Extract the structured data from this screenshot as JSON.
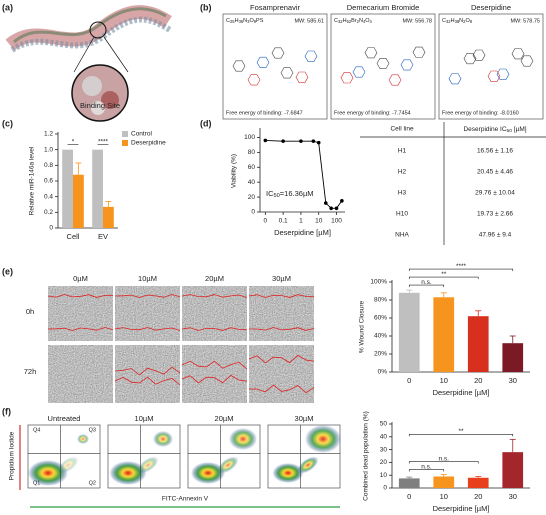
{
  "panel_labels": [
    "(a)",
    "(b)",
    "(c)",
    "(d)",
    "(e)",
    "(f)"
  ],
  "panel_a": {
    "annotation": "Binding Site"
  },
  "molecules": [
    {
      "name": "Fosamprenavir",
      "formula": "C25H36N3O9PS",
      "mw": "MW: 585.61",
      "energy": "Free energy of binding: -7.6847"
    },
    {
      "name": "Demecarium Bromide",
      "formula": "C32H52Br2N4O4",
      "mw": "MW: 556.78",
      "energy": "Free energy of binding: -7.7454"
    },
    {
      "name": "Deserpidine",
      "formula": "C32H38N2O8",
      "mw": "MW: 578.75",
      "energy": "Free energy of binding: -8.0160"
    }
  ],
  "table": {
    "header": [
      "Cell line",
      "Deserpidine IC50 [µM]"
    ],
    "rows": [
      [
        "H1",
        "16.56 ± 1.16"
      ],
      [
        "H2",
        "20.45 ± 4.46"
      ],
      [
        "H3",
        "29.76 ± 10.04"
      ],
      [
        "H10",
        "19.73 ± 2.66"
      ],
      [
        "NHA",
        "47.96 ± 9.4"
      ]
    ]
  },
  "wound_assay": {
    "columns": [
      "0µM",
      "10µM",
      "20µM",
      "30µM"
    ],
    "rows": [
      "0h",
      "72h"
    ]
  },
  "flow_cytometry": {
    "columns": [
      "Untreated",
      "10µM",
      "20µM",
      "30µM"
    ],
    "quadrants": [
      "Q4",
      "Q3",
      "Q1",
      "Q2"
    ],
    "y_label": "Propidium Iodide",
    "x_label": "FITC-Annexin V"
  },
  "chart_data": [
    {
      "type": "bar",
      "y_label": "Relative miR-146a level",
      "categories": [
        "Cell",
        "EV"
      ],
      "series": [
        {
          "name": "Control",
          "color": "#bfbfbf",
          "values": [
            1.0,
            1.0
          ]
        },
        {
          "name": "Deserpidine",
          "color": "#f7941d",
          "values": [
            0.68,
            0.27
          ],
          "errors": [
            0.15,
            0.07
          ]
        }
      ],
      "ylim": [
        0,
        1.2
      ],
      "yticks": [
        0,
        0.2,
        0.4,
        0.6,
        0.8,
        {
          "value": 1,
          "label": "1.0"
        },
        1.2
      ],
      "legend": "top-right",
      "significance": [
        {
          "label": "*",
          "category": 0
        },
        {
          "label": "****",
          "category": 1
        }
      ]
    },
    {
      "type": "line",
      "x_label": "Deserpidine [µM]",
      "y_label": "Viability (%)",
      "annotation": "IC50=16.36µM",
      "x": [
        0,
        0.1,
        1,
        5,
        10,
        25,
        50,
        100,
        200
      ],
      "values": [
        96,
        95,
        95,
        95,
        93,
        12,
        5,
        5,
        15
      ],
      "color": "#000000",
      "xlim": [
        0,
        300
      ],
      "xticks": [
        0,
        0.1,
        1,
        10,
        100
      ],
      "log_x": true,
      "ylim": [
        0,
        110
      ],
      "yticks": [
        0,
        20,
        40,
        60,
        80,
        100
      ]
    },
    {
      "type": "bar",
      "x_label": "Deserpidine [µM]",
      "y_label": "% Wound Closure",
      "categories": [
        "0",
        "10",
        "20",
        "30"
      ],
      "values": [
        88,
        83,
        62,
        32
      ],
      "errors": [
        3,
        5,
        6,
        8
      ],
      "colors": [
        "#bfbfbf",
        "#f7941d",
        "#d7301f",
        "#7b1a24"
      ],
      "ylim": [
        0,
        100
      ],
      "yticks": [
        {
          "value": 0,
          "label": "0%"
        },
        {
          "value": 20,
          "label": "20%"
        },
        {
          "value": 40,
          "label": "40%"
        },
        {
          "value": 60,
          "label": "60%"
        },
        {
          "value": 80,
          "label": "80%"
        },
        {
          "value": 100,
          "label": "100%"
        }
      ],
      "significance": [
        {
          "label": "n.s.",
          "bars": [
            0,
            1
          ]
        },
        {
          "label": "**",
          "bars": [
            0,
            2
          ]
        },
        {
          "label": "****",
          "bars": [
            0,
            3
          ]
        }
      ]
    },
    {
      "type": "bar",
      "x_label": "Deserpidine [µM]",
      "y_label": "Combined dead population (%)",
      "categories": [
        "0",
        "10",
        "20",
        "30"
      ],
      "values": [
        7.5,
        9,
        8,
        28
      ],
      "errors": [
        1,
        1.5,
        1,
        10
      ],
      "colors": [
        "#7f7f7f",
        "#f7941d",
        "#e8401c",
        "#a3262a"
      ],
      "ylim": [
        0,
        50
      ],
      "yticks": [
        0,
        10,
        20,
        30,
        40,
        50
      ],
      "significance": [
        {
          "label": "n.s.",
          "bars": [
            0,
            1
          ]
        },
        {
          "label": "n.s.",
          "bars": [
            0,
            2
          ]
        },
        {
          "label": "**",
          "bars": [
            0,
            3
          ]
        }
      ]
    }
  ]
}
